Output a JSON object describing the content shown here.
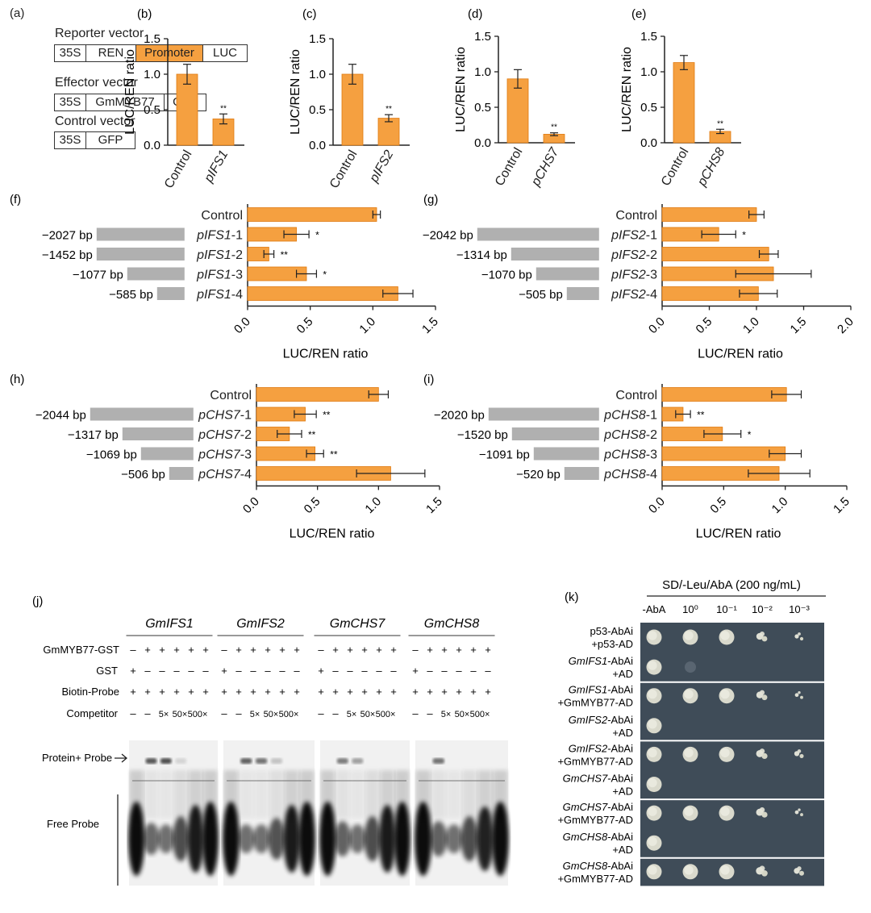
{
  "colors": {
    "bar": "#F5A040",
    "bar_stroke": "#E07A10",
    "promoter_grey": "#B0B0B0",
    "axis": "#222222"
  },
  "panel_a": {
    "letter": "(a)",
    "reporter": {
      "title": "Reporter vector",
      "parts": [
        "35S",
        "REN",
        "Promoter",
        "LUC"
      ]
    },
    "effector": {
      "title": "Effector vector",
      "parts": [
        "35S",
        "GmMYB77",
        "GFP"
      ]
    },
    "control": {
      "title": "Control vector",
      "parts": [
        "35S",
        "GFP"
      ]
    }
  },
  "chart_data": [
    {
      "panel": "(b)",
      "type": "bar",
      "categories": [
        "Control",
        "pIFS1"
      ],
      "values": [
        1.0,
        0.37
      ],
      "errors": [
        0.14,
        0.07
      ],
      "sig": [
        "",
        "**"
      ],
      "ylabel": "LUC/REN ratio",
      "ylim": [
        0,
        1.5
      ],
      "yticks": [
        "0.0",
        "0.5",
        "1.0",
        "1.5"
      ]
    },
    {
      "panel": "(c)",
      "type": "bar",
      "categories": [
        "Control",
        "pIFS2"
      ],
      "values": [
        1.0,
        0.38
      ],
      "errors": [
        0.14,
        0.05
      ],
      "sig": [
        "",
        "**"
      ],
      "ylabel": "LUC/REN ratio",
      "ylim": [
        0,
        1.5
      ],
      "yticks": [
        "0.0",
        "0.5",
        "1.0",
        "1.5"
      ]
    },
    {
      "panel": "(d)",
      "type": "bar",
      "categories": [
        "Control",
        "pCHS7"
      ],
      "values": [
        0.9,
        0.12
      ],
      "errors": [
        0.13,
        0.02
      ],
      "sig": [
        "",
        "**"
      ],
      "ylabel": "LUC/REN ratio",
      "ylim": [
        0,
        1.5
      ],
      "yticks": [
        "0.0",
        "0.5",
        "1.0",
        "1.5"
      ]
    },
    {
      "panel": "(e)",
      "type": "bar",
      "categories": [
        "Control",
        "pCHS8"
      ],
      "values": [
        1.13,
        0.16
      ],
      "errors": [
        0.1,
        0.03
      ],
      "sig": [
        "",
        "**"
      ],
      "ylabel": "LUC/REN ratio",
      "ylim": [
        0,
        1.5
      ],
      "yticks": [
        "0.0",
        "0.5",
        "1.0",
        "1.5"
      ]
    },
    {
      "panel": "(f)",
      "type": "bar",
      "orientation": "horizontal",
      "categories": [
        "Control",
        "pIFS1-1",
        "pIFS1-2",
        "pIFS1-3",
        "pIFS1-4"
      ],
      "promoter_lengths": [
        "",
        "−2027 bp",
        "−1452 bp",
        "−1077 bp",
        "−585 bp"
      ],
      "values": [
        1.03,
        0.39,
        0.17,
        0.47,
        1.2
      ],
      "errors": [
        0.03,
        0.1,
        0.04,
        0.08,
        0.12
      ],
      "sig": [
        "",
        "*",
        "**",
        "*",
        ""
      ],
      "xlabel": "LUC/REN  ratio",
      "xlim": [
        0,
        1.5
      ],
      "xticks": [
        "0.0",
        "0.5",
        "1.0",
        "1.5"
      ]
    },
    {
      "panel": "(g)",
      "type": "bar",
      "orientation": "horizontal",
      "categories": [
        "Control",
        "pIFS2-1",
        "pIFS2-2",
        "pIFS2-3",
        "pIFS2-4"
      ],
      "promoter_lengths": [
        "",
        "−2042 bp",
        "−1314 bp",
        "−1070 bp",
        "−505 bp"
      ],
      "values": [
        1.0,
        0.6,
        1.13,
        1.18,
        1.02
      ],
      "errors": [
        0.08,
        0.18,
        0.1,
        0.4,
        0.2
      ],
      "sig": [
        "",
        "*",
        "",
        "",
        ""
      ],
      "xlabel": "LUC/REN ratio",
      "xlim": [
        0,
        2.0
      ],
      "xticks": [
        "0.0",
        "0.5",
        "1.0",
        "1.5",
        "2.0"
      ]
    },
    {
      "panel": "(h)",
      "type": "bar",
      "orientation": "horizontal",
      "categories": [
        "Control",
        "pCHS7-1",
        "pCHS7-2",
        "pCHS7-3",
        "pCHS7-4"
      ],
      "promoter_lengths": [
        "",
        "−2044 bp",
        "−1317 bp",
        "−1069 bp",
        "−506 bp"
      ],
      "values": [
        1.0,
        0.4,
        0.27,
        0.48,
        1.1
      ],
      "errors": [
        0.08,
        0.09,
        0.1,
        0.07,
        0.28
      ],
      "sig": [
        "",
        "**",
        "**",
        "**",
        ""
      ],
      "xlabel": "LUC/REN ratio",
      "xlim": [
        0,
        1.5
      ],
      "xticks": [
        "0.0",
        "0.5",
        "1.0",
        "1.5"
      ]
    },
    {
      "panel": "(i)",
      "type": "bar",
      "orientation": "horizontal",
      "categories": [
        "Control",
        "pCHS8-1",
        "pCHS8-2",
        "pCHS8-3",
        "pCHS8-4"
      ],
      "promoter_lengths": [
        "",
        "−2020 bp",
        "−1520 bp",
        "−1091 bp",
        "−520 bp"
      ],
      "values": [
        1.01,
        0.17,
        0.49,
        1.0,
        0.95
      ],
      "errors": [
        0.12,
        0.06,
        0.15,
        0.13,
        0.25
      ],
      "sig": [
        "",
        "**",
        "*",
        "",
        ""
      ],
      "xlabel": "LUC/REN ratio",
      "xlim": [
        0,
        1.5
      ],
      "xticks": [
        "0.0",
        "0.5",
        "1.0",
        "1.5"
      ]
    }
  ],
  "panel_j": {
    "letter": "(j)",
    "genes": [
      "GmIFS1",
      "GmIFS2",
      "GmCHS7",
      "GmCHS8"
    ],
    "row_labels": [
      "GmMYB77-GST",
      "GST",
      "Biotin-Probe",
      "Competitor"
    ],
    "rows": [
      [
        "–",
        "+",
        "+",
        "+",
        "+",
        "+"
      ],
      [
        "+",
        "–",
        "–",
        "–",
        "–",
        "–"
      ],
      [
        "+",
        "+",
        "+",
        "+",
        "+",
        "+"
      ],
      [
        "–",
        "–",
        "5×",
        "50×",
        "500×",
        ""
      ]
    ],
    "protein_probe_label": "Protein+ Probe",
    "free_probe_label": "Free Probe",
    "shift_intensity": [
      [
        0,
        0.85,
        0.9,
        0.15,
        0,
        0
      ],
      [
        0,
        0.8,
        0.7,
        0.25,
        0,
        0
      ],
      [
        0,
        0.65,
        0.45,
        0,
        0,
        0
      ],
      [
        0,
        0.7,
        0,
        0,
        0,
        0
      ]
    ]
  },
  "panel_k": {
    "letter": "(k)",
    "title": "SD/-Leu/AbA (200 ng/mL)",
    "columns": [
      "-AbA",
      "10⁰",
      "10⁻¹",
      "10⁻²",
      "10⁻³"
    ],
    "rows": [
      {
        "line1": "p53-AbAi",
        "line2": "+p53-AD",
        "italic": false,
        "growth": [
          1,
          1,
          1,
          0.8,
          0.5
        ]
      },
      {
        "line1": "GmIFS1-AbAi",
        "line2": "+AD",
        "italic": true,
        "growth": [
          1,
          0.1,
          0,
          0,
          0
        ]
      },
      {
        "line1": "GmIFS1-AbAi",
        "line2": "+GmMYB77-AD",
        "italic": true,
        "growth": [
          1,
          1,
          1,
          0.8,
          0.4
        ]
      },
      {
        "line1": "GmIFS2-AbAi",
        "line2": "+AD",
        "italic": true,
        "growth": [
          1,
          0,
          0,
          0,
          0
        ]
      },
      {
        "line1": "GmIFS2-AbAi",
        "line2": "+GmMYB77-AD",
        "italic": true,
        "growth": [
          1,
          1,
          1,
          0.85,
          0.6
        ]
      },
      {
        "line1": "GmCHS7-AbAi",
        "line2": "+AD",
        "italic": true,
        "growth": [
          1,
          0,
          0,
          0,
          0
        ]
      },
      {
        "line1": "GmCHS7-AbAi",
        "line2": "+GmMYB77-AD",
        "italic": true,
        "growth": [
          1,
          1,
          1,
          0.85,
          0.3
        ]
      },
      {
        "line1": "GmCHS8-AbAi",
        "line2": "+AD",
        "italic": true,
        "growth": [
          1,
          0,
          0,
          0,
          0
        ]
      },
      {
        "line1": "GmCHS8-AbAi",
        "line2": "+GmMYB77-AD",
        "italic": true,
        "growth": [
          1,
          1,
          1,
          0.9,
          0.7
        ]
      }
    ]
  }
}
